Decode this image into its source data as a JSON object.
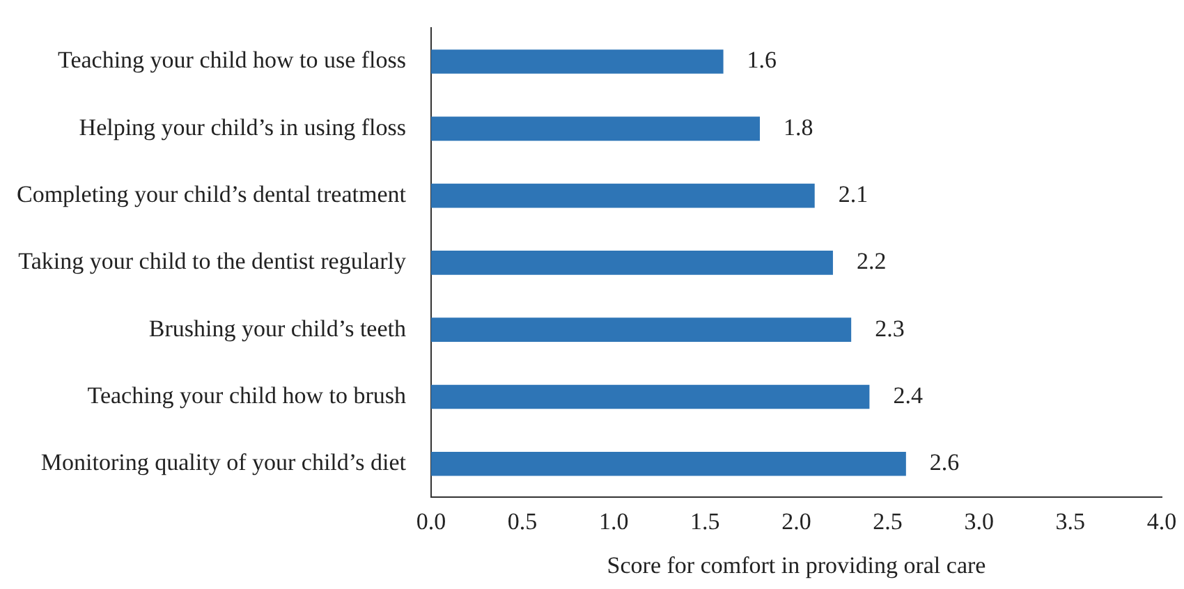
{
  "chart_data": {
    "type": "bar",
    "orientation": "horizontal",
    "xlabel": "Score for comfort in providing oral care",
    "categories": [
      "Teaching your child how to use floss",
      "Helping your child’s in using floss",
      "Completing your child’s dental treatment",
      "Taking your child to the dentist regularly",
      "Brushing your child’s teeth",
      "Teaching your child how to brush",
      "Monitoring quality of your child’s diet"
    ],
    "values": [
      1.6,
      1.8,
      2.1,
      2.2,
      2.3,
      2.4,
      2.6
    ],
    "color": "#2e75b6",
    "xlim": [
      0,
      4
    ],
    "xticks": [
      {
        "value": 0,
        "label": "0.0"
      },
      {
        "value": 0.5,
        "label": "0.5"
      },
      {
        "value": 1,
        "label": "1.0"
      },
      {
        "value": 1.5,
        "label": "1.5"
      },
      {
        "value": 2,
        "label": "2.0"
      },
      {
        "value": 2.5,
        "label": "2.5"
      },
      {
        "value": 3,
        "label": "3.0"
      },
      {
        "value": 3.5,
        "label": "3.5"
      },
      {
        "value": 4,
        "label": "4.0"
      }
    ],
    "data_labels": true,
    "grid": false,
    "legend": false
  }
}
